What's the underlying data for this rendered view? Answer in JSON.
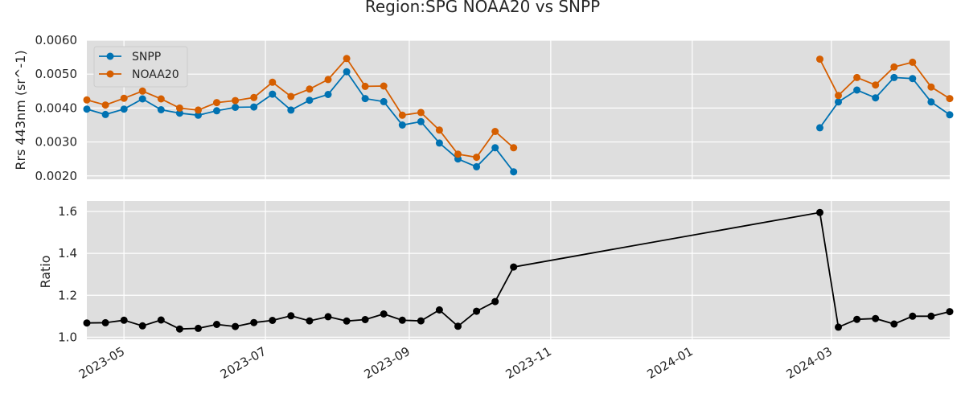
{
  "chart_data": [
    {
      "type": "line",
      "title": "Region:SPG NOAA20 vs SNPP",
      "ylabel": "Rrs 443nm (sr^-1)",
      "xlabel": "",
      "ylim": [
        0.0019,
        0.006
      ],
      "yticks": [
        "0.0020",
        "0.0030",
        "0.0040",
        "0.0050",
        "0.0060"
      ],
      "ytick_values": [
        0.002,
        0.003,
        0.004,
        0.005,
        0.006
      ],
      "grid": true,
      "legend_position": "top-left",
      "series": [
        {
          "name": "SNPP",
          "color": "#0072b2",
          "points": [
            [
              "2023-04-15",
              0.00397
            ],
            [
              "2023-04-23",
              0.00381
            ],
            [
              "2023-05-01",
              0.00397
            ],
            [
              "2023-05-09",
              0.00427
            ],
            [
              "2023-05-17",
              0.00395
            ],
            [
              "2023-05-25",
              0.00385
            ],
            [
              "2023-06-02",
              0.00379
            ],
            [
              "2023-06-10",
              0.00392
            ],
            [
              "2023-06-18",
              0.00402
            ],
            [
              "2023-06-26",
              0.00403
            ],
            [
              "2023-07-04",
              0.00441
            ],
            [
              "2023-07-12",
              0.00394
            ],
            [
              "2023-07-20",
              0.00423
            ],
            [
              "2023-07-28",
              0.0044
            ],
            [
              "2023-08-05",
              0.00507
            ],
            [
              "2023-08-13",
              0.00428
            ],
            [
              "2023-08-21",
              0.00419
            ],
            [
              "2023-08-29",
              0.0035
            ],
            [
              "2023-09-06",
              0.0036
            ],
            [
              "2023-09-14",
              0.00297
            ],
            [
              "2023-09-22",
              0.0025
            ],
            [
              "2023-09-30",
              0.00227
            ],
            [
              "2023-10-08",
              0.00283
            ],
            [
              "2023-10-16",
              0.00212
            ],
            [
              "2024-02-25",
              0.00342
            ],
            [
              "2024-03-04",
              0.00418
            ],
            [
              "2024-03-12",
              0.00453
            ],
            [
              "2024-03-20",
              0.0043
            ],
            [
              "2024-03-28",
              0.0049
            ],
            [
              "2024-04-05",
              0.00487
            ],
            [
              "2024-04-13",
              0.00418
            ],
            [
              "2024-04-21",
              0.0038
            ]
          ]
        },
        {
          "name": "NOAA20",
          "color": "#d55e00",
          "points": [
            [
              "2023-04-15",
              0.00424
            ],
            [
              "2023-04-23",
              0.00409
            ],
            [
              "2023-05-01",
              0.00429
            ],
            [
              "2023-05-09",
              0.0045
            ],
            [
              "2023-05-17",
              0.00427
            ],
            [
              "2023-05-25",
              0.004
            ],
            [
              "2023-06-02",
              0.00394
            ],
            [
              "2023-06-10",
              0.00416
            ],
            [
              "2023-06-18",
              0.00422
            ],
            [
              "2023-06-26",
              0.00431
            ],
            [
              "2023-07-04",
              0.00476
            ],
            [
              "2023-07-12",
              0.00434
            ],
            [
              "2023-07-20",
              0.00456
            ],
            [
              "2023-07-28",
              0.00484
            ],
            [
              "2023-08-05",
              0.00546
            ],
            [
              "2023-08-13",
              0.00464
            ],
            [
              "2023-08-21",
              0.00465
            ],
            [
              "2023-08-29",
              0.00379
            ],
            [
              "2023-09-06",
              0.00387
            ],
            [
              "2023-09-14",
              0.00335
            ],
            [
              "2023-09-22",
              0.00264
            ],
            [
              "2023-09-30",
              0.00255
            ],
            [
              "2023-10-08",
              0.00331
            ],
            [
              "2023-10-16",
              0.00283
            ],
            [
              "2024-02-25",
              0.00544
            ],
            [
              "2024-03-04",
              0.00437
            ],
            [
              "2024-03-12",
              0.0049
            ],
            [
              "2024-03-20",
              0.00468
            ],
            [
              "2024-03-28",
              0.00521
            ],
            [
              "2024-04-05",
              0.00535
            ],
            [
              "2024-04-13",
              0.00462
            ],
            [
              "2024-04-21",
              0.00428
            ]
          ]
        }
      ]
    },
    {
      "type": "line",
      "ylabel": "Ratio",
      "xlabel": "",
      "ylim": [
        0.99,
        1.65
      ],
      "yticks": [
        "1.0",
        "1.2",
        "1.4",
        "1.6"
      ],
      "ytick_values": [
        1.0,
        1.2,
        1.4,
        1.6
      ],
      "grid": true,
      "series": [
        {
          "color": "#000000",
          "points": [
            [
              "2023-04-15",
              1.068
            ],
            [
              "2023-04-23",
              1.069
            ],
            [
              "2023-05-01",
              1.081
            ],
            [
              "2023-05-09",
              1.054
            ],
            [
              "2023-05-17",
              1.082
            ],
            [
              "2023-05-25",
              1.039
            ],
            [
              "2023-06-02",
              1.042
            ],
            [
              "2023-06-10",
              1.061
            ],
            [
              "2023-06-18",
              1.051
            ],
            [
              "2023-06-26",
              1.07
            ],
            [
              "2023-07-04",
              1.08
            ],
            [
              "2023-07-12",
              1.102
            ],
            [
              "2023-07-20",
              1.078
            ],
            [
              "2023-07-28",
              1.098
            ],
            [
              "2023-08-05",
              1.077
            ],
            [
              "2023-08-13",
              1.084
            ],
            [
              "2023-08-21",
              1.111
            ],
            [
              "2023-08-29",
              1.081
            ],
            [
              "2023-09-06",
              1.078
            ],
            [
              "2023-09-14",
              1.13
            ],
            [
              "2023-09-22",
              1.052
            ],
            [
              "2023-09-30",
              1.124
            ],
            [
              "2023-10-08",
              1.17
            ],
            [
              "2023-10-16",
              1.335
            ],
            [
              "2024-02-25",
              1.595
            ],
            [
              "2024-03-04",
              1.048
            ],
            [
              "2024-03-12",
              1.085
            ],
            [
              "2024-03-20",
              1.089
            ],
            [
              "2024-03-28",
              1.063
            ],
            [
              "2024-04-05",
              1.1
            ],
            [
              "2024-04-13",
              1.1
            ],
            [
              "2024-04-21",
              1.122
            ]
          ]
        }
      ]
    }
  ],
  "x_axis": {
    "range": [
      "2023-04-15",
      "2024-04-21"
    ],
    "ticks": [
      "2023-05",
      "2023-07",
      "2023-09",
      "2023-11",
      "2024-01",
      "2024-03"
    ],
    "tick_dates": [
      "2023-05-01",
      "2023-07-01",
      "2023-09-01",
      "2023-11-01",
      "2024-01-01",
      "2024-03-01"
    ]
  }
}
